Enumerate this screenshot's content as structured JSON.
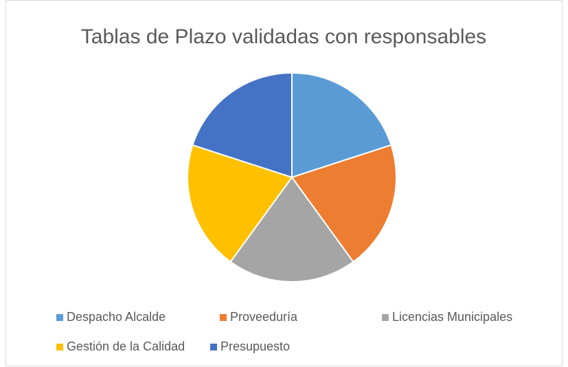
{
  "chart_data": {
    "type": "pie",
    "title": "Tablas de Plazo validadas con responsables",
    "categories": [
      "Despacho Alcalde",
      "Proveeduría",
      "Licencias Municipales",
      "Gestión de la Calidad",
      "Presupuesto"
    ],
    "values": [
      20,
      20,
      20,
      20,
      20
    ],
    "colors": [
      "#5b9bd5",
      "#ed7d31",
      "#a5a5a5",
      "#ffc000",
      "#4472c4"
    ],
    "legend": "bottom"
  }
}
